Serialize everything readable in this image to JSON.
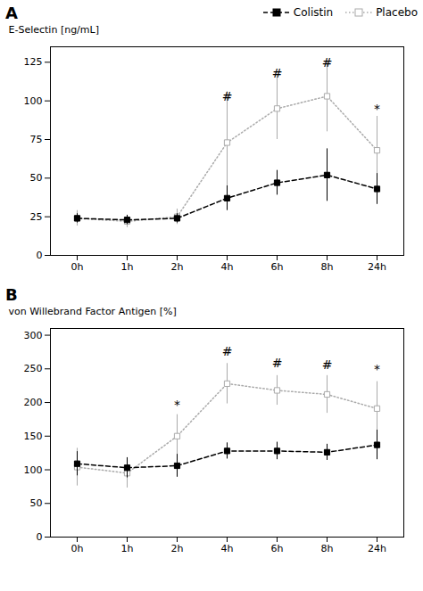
{
  "chart_data": [
    {
      "type": "line",
      "title": "A",
      "y_label": "E-Selectin [ng/mL]",
      "categories": [
        "0h",
        "1h",
        "2h",
        "4h",
        "6h",
        "8h",
        "24h"
      ],
      "series": [
        {
          "name": "Colistin",
          "color": "#000000",
          "line_style": "dashed",
          "marker": "square",
          "values": [
            24,
            23,
            24,
            37,
            47,
            52,
            43
          ],
          "errors": [
            3,
            3,
            3,
            8,
            8,
            17,
            10
          ]
        },
        {
          "name": "Placebo",
          "color": "#aaaaaa",
          "line_style": "dotted",
          "marker": "open_square",
          "values": [
            24,
            22,
            25,
            73,
            95,
            103,
            68
          ],
          "errors": [
            5,
            4,
            5,
            33,
            20,
            23,
            22
          ]
        }
      ],
      "annotations": [
        {
          "text": "#",
          "category": "4h",
          "y": 100
        },
        {
          "text": "#",
          "category": "6h",
          "y": 115
        },
        {
          "text": "#",
          "category": "8h",
          "y": 122
        },
        {
          "text": "*",
          "category": "24h",
          "y": 92
        }
      ],
      "ylim": [
        0,
        135
      ],
      "yticks": [
        0,
        25,
        50,
        75,
        100,
        125
      ],
      "grid": false,
      "legend": "upper right"
    },
    {
      "type": "line",
      "title": "B",
      "y_label": "von Willebrand Factor Antigen [%]",
      "categories": [
        "0h",
        "1h",
        "2h",
        "4h",
        "6h",
        "8h",
        "24h"
      ],
      "series": [
        {
          "name": "Colistin",
          "color": "#000000",
          "line_style": "dashed",
          "marker": "square",
          "values": [
            109,
            103,
            106,
            128,
            128,
            126,
            137
          ],
          "errors": [
            18,
            15,
            17,
            12,
            13,
            12,
            22
          ]
        },
        {
          "name": "Placebo",
          "color": "#aaaaaa",
          "line_style": "dotted",
          "marker": "open_square",
          "values": [
            104,
            95,
            150,
            228,
            218,
            212,
            191
          ],
          "errors": [
            28,
            22,
            32,
            30,
            22,
            28,
            40
          ]
        }
      ],
      "annotations": [
        {
          "text": "#",
          "category": "4h",
          "y": 270
        },
        {
          "text": "#",
          "category": "6h",
          "y": 252
        },
        {
          "text": "#",
          "category": "8h",
          "y": 250
        },
        {
          "text": "*",
          "category": "2h",
          "y": 190
        },
        {
          "text": "*",
          "category": "24h",
          "y": 243
        }
      ],
      "ylim": [
        0,
        310
      ],
      "yticks": [
        0,
        50,
        100,
        150,
        200,
        250,
        300
      ],
      "grid": false
    }
  ]
}
